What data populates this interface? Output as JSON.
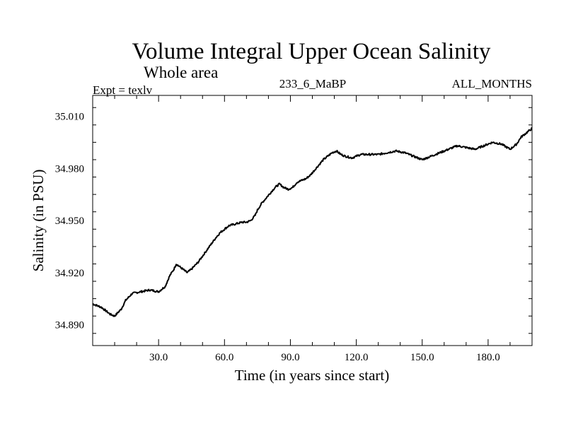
{
  "chart_data": {
    "type": "line",
    "title": "Volume Integral Upper Ocean Salinity",
    "subtitle": "Whole area",
    "left_label": "Expt = texlv",
    "center_label": "233_6_MaBP",
    "right_label": "ALL_MONTHS",
    "xlabel": "Time (in years since start)",
    "ylabel": "Salinity (in PSU)",
    "xlim": [
      0,
      200
    ],
    "ylim": [
      34.878,
      35.022
    ],
    "xticks": [
      30,
      60,
      90,
      120,
      150,
      180
    ],
    "xtick_labels": [
      "30.0",
      "60.0",
      "90.0",
      "120.0",
      "150.0",
      "180.0"
    ],
    "yticks": [
      34.89,
      34.92,
      34.95,
      34.98,
      35.01
    ],
    "ytick_labels": [
      "34.890",
      "34.920",
      "34.950",
      "34.980",
      "35.010"
    ],
    "grid": false,
    "line_color": "#000000",
    "series": [
      {
        "name": "salinity",
        "x": [
          0,
          4,
          8,
          10,
          13,
          15,
          18,
          22,
          26,
          30,
          33,
          35,
          37,
          38,
          40,
          43,
          45,
          48,
          52,
          56,
          58,
          60,
          62,
          65,
          68,
          70,
          72,
          74,
          75,
          77,
          79,
          81,
          83,
          85,
          87,
          89,
          91,
          93,
          95,
          97,
          99,
          101,
          103,
          105,
          107,
          109,
          111,
          113,
          115,
          118,
          122,
          126,
          130,
          134,
          138,
          142,
          146,
          150,
          154,
          158,
          162,
          166,
          170,
          174,
          178,
          182,
          186,
          190,
          193,
          195,
          197,
          199,
          200
        ],
        "y": [
          34.902,
          34.9,
          34.896,
          34.895,
          34.899,
          34.904,
          34.908,
          34.909,
          34.91,
          34.909,
          34.912,
          34.918,
          34.922,
          34.925,
          34.923,
          34.92,
          34.922,
          34.926,
          34.933,
          34.94,
          34.943,
          34.945,
          34.947,
          34.948,
          34.949,
          34.949,
          34.95,
          34.953,
          34.956,
          34.96,
          34.963,
          34.966,
          34.969,
          34.971,
          34.969,
          34.968,
          34.969,
          34.972,
          34.973,
          34.974,
          34.976,
          34.979,
          34.982,
          34.985,
          34.987,
          34.989,
          34.99,
          34.988,
          34.987,
          34.986,
          34.988,
          34.988,
          34.988,
          34.989,
          34.99,
          34.989,
          34.987,
          34.985,
          34.987,
          34.989,
          34.991,
          34.993,
          34.992,
          34.991,
          34.993,
          34.995,
          34.994,
          34.991,
          34.994,
          34.998,
          35.0,
          35.002,
          35.003
        ]
      }
    ]
  }
}
